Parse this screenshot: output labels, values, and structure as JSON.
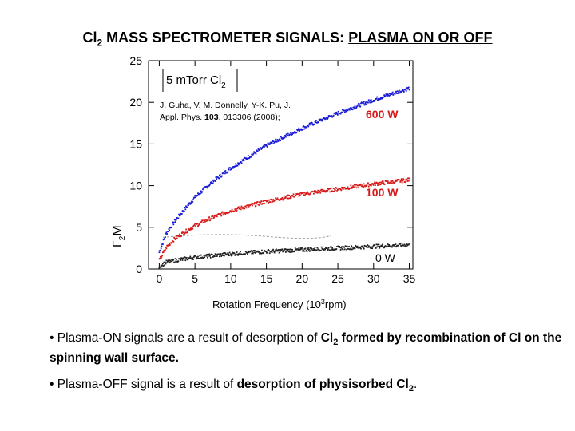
{
  "slide": {
    "title_pre": "Cl",
    "title_sub": "2",
    "title_mid": " MASS SPECTROMETER SIGNALS: ",
    "title_underlined": "PLASMA ON OR OFF",
    "bullet1": {
      "bullet": "•",
      "t1": " Plasma-ON signals are a result of desorption of ",
      "b1": "Cl",
      "b1_sub": "2",
      "b2": " formed by recombination of Cl on the spinning wall surface."
    },
    "bullet2": {
      "bullet": "•",
      "t1": " Plasma-OFF signal is a result of ",
      "b1": "desorption of physisorbed Cl",
      "b1_sub": "2",
      "t2": "."
    }
  },
  "chart_data": {
    "type": "scatter",
    "xlabel": "Rotation Frequency (10",
    "xlabel_sup": "3",
    "xlabel_end": "rpm)",
    "ylabel": "M",
    "ylabel_sub": "2",
    "ylabel_prefix": "Γ",
    "xlim": [
      -1.5,
      35.5
    ],
    "ylim": [
      0,
      25
    ],
    "xticks": [
      0,
      5,
      10,
      15,
      20,
      25,
      30,
      35
    ],
    "yticks": [
      0,
      5,
      10,
      15,
      20,
      25
    ],
    "condition": "5 mTorr Cl",
    "condition_sub": "2",
    "citation_line1": "J. Guha, V. M. Donnelly, Y-K. Pu, J.",
    "citation_line2_pre": "Appl. Phys. ",
    "citation_volume": "103",
    "citation_line2_post": ", 013306 (2008);",
    "series": [
      {
        "name": "600 W",
        "color": "#1a1ad6",
        "amplitude": 4.1,
        "x": [
          0,
          1,
          2,
          3,
          5,
          7.5,
          10,
          15,
          20,
          25,
          30,
          35
        ],
        "y": [
          2.0,
          4.3,
          5.5,
          6.6,
          8.6,
          10.5,
          12.1,
          14.8,
          16.9,
          18.7,
          20.3,
          21.7
        ]
      },
      {
        "name": "100 W",
        "color": "#d61a1a",
        "amplitude": 2.5,
        "x": [
          0,
          1,
          2,
          3,
          5,
          7.5,
          10,
          15,
          20,
          25,
          30,
          35
        ],
        "y": [
          1.0,
          2.6,
          3.5,
          4.1,
          5.2,
          6.2,
          7.0,
          8.1,
          9.0,
          9.6,
          10.2,
          10.7
        ]
      },
      {
        "name": "0 W",
        "color": "#222222",
        "amplitude": 0.6,
        "x": [
          0,
          1,
          2,
          5,
          10,
          15,
          20,
          25,
          30,
          35
        ],
        "y": [
          0.3,
          0.8,
          1.0,
          1.4,
          1.8,
          2.1,
          2.3,
          2.5,
          2.7,
          2.9
        ]
      }
    ],
    "label_600": "600 W",
    "label_100": "100 W",
    "label_0": "0 W"
  }
}
